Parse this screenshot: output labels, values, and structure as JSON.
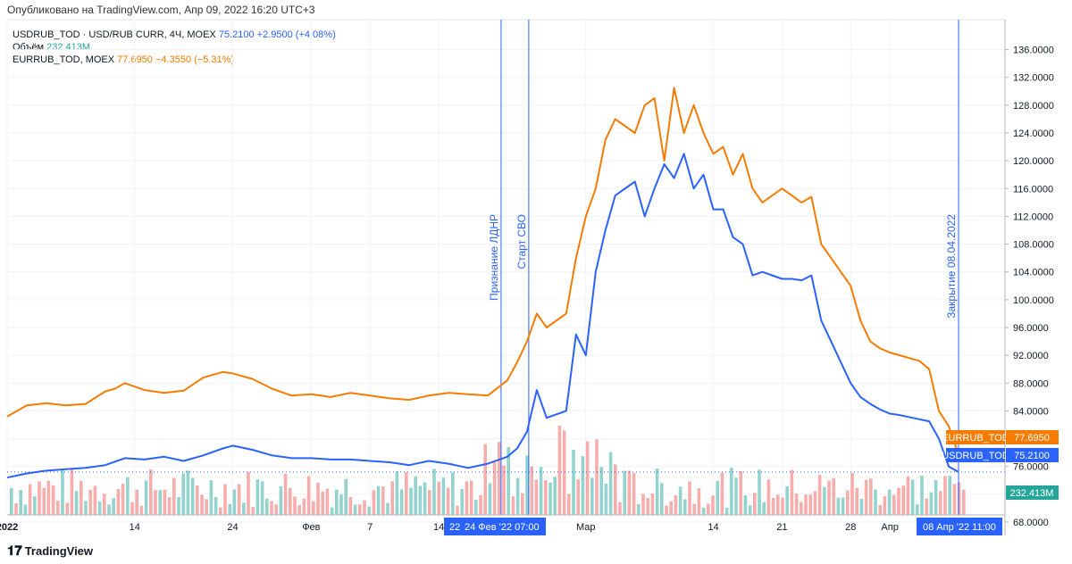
{
  "header": {
    "published": "Опубликовано на TradingView.com, Апр 09, 2022 16:20 UTC+3"
  },
  "legend": {
    "usd_label": "USDRUB_TOD · USD/RUB CURR, 4Ч, MOEX",
    "usd_value": "75.2100",
    "usd_change": "+2.9500 (+4.08%)",
    "volume_label": "Объём",
    "volume_value": "232.413M",
    "eur_label": "EURRUB_TOD, MOEX",
    "eur_value": "77.6950",
    "eur_change": "−4.3550 (−5.31%)"
  },
  "footer": {
    "brand": "TradingView"
  },
  "colors": {
    "usd": "#2962ff",
    "eur": "#f57c00",
    "vol_up": "#26a69a",
    "vol_down": "#ef5350"
  },
  "chart_data": {
    "type": "line",
    "x_unit": "date (2022)",
    "x_range": [
      "2022-01-01",
      "2022-04-08"
    ],
    "ylim": [
      68,
      138
    ],
    "y_ticks": [
      "68.0000",
      "72.0000",
      "76.0000",
      "80.0000",
      "84.0000",
      "88.0000",
      "92.0000",
      "96.0000",
      "100.0000",
      "104.0000",
      "108.0000",
      "112.0000",
      "116.0000",
      "120.0000",
      "124.0000",
      "128.0000",
      "132.0000",
      "136.0000"
    ],
    "x_ticks": [
      {
        "x": "2022-01-01",
        "label": "2022"
      },
      {
        "x": "2022-01-14",
        "label": "14"
      },
      {
        "x": "2022-01-24",
        "label": "24"
      },
      {
        "x": "2022-02-01",
        "label": "Фев"
      },
      {
        "x": "2022-02-07",
        "label": "7"
      },
      {
        "x": "2022-02-14",
        "label": "14"
      },
      {
        "x": "2022-03-01",
        "label": "Мар"
      },
      {
        "x": "2022-03-14",
        "label": "14"
      },
      {
        "x": "2022-03-21",
        "label": "21"
      },
      {
        "x": "2022-03-28",
        "label": "28"
      },
      {
        "x": "2022-04-01",
        "label": "Апр"
      }
    ],
    "x_range_labels": [
      {
        "x": "2022-02-22",
        "label": "22"
      },
      {
        "x": "2022-02-24",
        "label": "24 Фев '22   07:00"
      },
      {
        "x": "2022-04-08",
        "label": "08 Апр '22   11:00"
      }
    ],
    "annotations": [
      {
        "x": "2022-02-22",
        "label": "Признание ЛДНР"
      },
      {
        "x": "2022-02-24",
        "label": "Старт СВО"
      },
      {
        "x": "2022-04-08",
        "label": "Закрытие 08.04.2022"
      }
    ],
    "price_tags": [
      {
        "series": "EURRUB_TOD",
        "name": "EURRUB_TOD",
        "value": "77.6950"
      },
      {
        "series": "USDRUB_TOD",
        "name": "USDRUB_TOD",
        "value": "75.2100"
      },
      {
        "series": "volume",
        "name": "",
        "value": "232.413M"
      }
    ],
    "series": [
      {
        "name": "EURRUB_TOD",
        "x": [
          "2022-01-01",
          "2022-01-03",
          "2022-01-05",
          "2022-01-07",
          "2022-01-09",
          "2022-01-11",
          "2022-01-12",
          "2022-01-13",
          "2022-01-15",
          "2022-01-17",
          "2022-01-19",
          "2022-01-21",
          "2022-01-23",
          "2022-01-24",
          "2022-01-26",
          "2022-01-28",
          "2022-01-30",
          "2022-02-01",
          "2022-02-03",
          "2022-02-05",
          "2022-02-07",
          "2022-02-09",
          "2022-02-11",
          "2022-02-13",
          "2022-02-15",
          "2022-02-17",
          "2022-02-19",
          "2022-02-21",
          "2022-02-22",
          "2022-02-23",
          "2022-02-24",
          "2022-02-25",
          "2022-02-27",
          "2022-02-28",
          "2022-03-01",
          "2022-03-02",
          "2022-03-03",
          "2022-03-04",
          "2022-03-06",
          "2022-03-07",
          "2022-03-08",
          "2022-03-09",
          "2022-03-10",
          "2022-03-11",
          "2022-03-12",
          "2022-03-13",
          "2022-03-14",
          "2022-03-15",
          "2022-03-16",
          "2022-03-17",
          "2022-03-18",
          "2022-03-19",
          "2022-03-21",
          "2022-03-22",
          "2022-03-23",
          "2022-03-24",
          "2022-03-25",
          "2022-03-26",
          "2022-03-28",
          "2022-03-29",
          "2022-03-30",
          "2022-03-31",
          "2022-04-01",
          "2022-04-02",
          "2022-04-04",
          "2022-04-05",
          "2022-04-06",
          "2022-04-07",
          "2022-04-08"
        ],
        "values": [
          83.2,
          84.8,
          85.1,
          84.8,
          85.0,
          86.8,
          87.2,
          88.0,
          87.0,
          86.6,
          86.9,
          88.8,
          89.6,
          89.4,
          88.6,
          87.2,
          86.2,
          86.4,
          86.0,
          86.6,
          86.2,
          85.8,
          85.6,
          86.2,
          86.6,
          86.4,
          86.2,
          88.4,
          91.0,
          94.0,
          98.0,
          96.0,
          98.0,
          106.0,
          112.0,
          116.0,
          123.0,
          126.0,
          124.0,
          128.0,
          129.0,
          120.0,
          130.5,
          124.0,
          128.0,
          124.0,
          121.0,
          122.0,
          118.0,
          121.0,
          116.0,
          114.0,
          116.0,
          115.0,
          114.0,
          114.8,
          108.0,
          106.0,
          102.0,
          97.0,
          94.0,
          93.0,
          92.4,
          92.0,
          91.2,
          90.0,
          84.0,
          81.8,
          77.69
        ]
      },
      {
        "name": "USDRUB_TOD",
        "x": [
          "2022-01-01",
          "2022-01-03",
          "2022-01-05",
          "2022-01-07",
          "2022-01-09",
          "2022-01-11",
          "2022-01-13",
          "2022-01-15",
          "2022-01-17",
          "2022-01-19",
          "2022-01-21",
          "2022-01-23",
          "2022-01-24",
          "2022-01-26",
          "2022-01-28",
          "2022-01-30",
          "2022-02-01",
          "2022-02-03",
          "2022-02-05",
          "2022-02-07",
          "2022-02-09",
          "2022-02-11",
          "2022-02-13",
          "2022-02-15",
          "2022-02-17",
          "2022-02-19",
          "2022-02-21",
          "2022-02-22",
          "2022-02-23",
          "2022-02-24",
          "2022-02-25",
          "2022-02-27",
          "2022-02-28",
          "2022-03-01",
          "2022-03-02",
          "2022-03-03",
          "2022-03-04",
          "2022-03-06",
          "2022-03-07",
          "2022-03-08",
          "2022-03-09",
          "2022-03-10",
          "2022-03-11",
          "2022-03-12",
          "2022-03-13",
          "2022-03-14",
          "2022-03-15",
          "2022-03-16",
          "2022-03-17",
          "2022-03-18",
          "2022-03-19",
          "2022-03-21",
          "2022-03-22",
          "2022-03-23",
          "2022-03-24",
          "2022-03-25",
          "2022-03-26",
          "2022-03-28",
          "2022-03-29",
          "2022-03-30",
          "2022-03-31",
          "2022-04-01",
          "2022-04-02",
          "2022-04-04",
          "2022-04-05",
          "2022-04-06",
          "2022-04-07",
          "2022-04-08"
        ],
        "values": [
          74.4,
          75.0,
          75.4,
          75.6,
          75.8,
          76.2,
          77.2,
          77.0,
          77.4,
          76.8,
          77.6,
          78.6,
          79.0,
          78.4,
          77.6,
          77.2,
          77.2,
          77.0,
          77.0,
          76.8,
          76.6,
          76.2,
          76.8,
          76.4,
          75.8,
          76.4,
          77.4,
          78.6,
          81.0,
          87.0,
          83.0,
          84.0,
          95.0,
          92.0,
          104.0,
          110.0,
          115.0,
          117.0,
          112.0,
          116.0,
          119.5,
          117.5,
          121.0,
          116.0,
          118.0,
          113.0,
          113.0,
          109.0,
          108.0,
          103.5,
          104.0,
          103.0,
          103.0,
          102.8,
          103.5,
          97.0,
          94.0,
          88.0,
          86.0,
          85.0,
          84.2,
          83.6,
          83.4,
          82.8,
          82.5,
          80.0,
          76.0,
          75.21
        ]
      }
    ],
    "volume_color_rule": "teal = up bar, red = down bar"
  }
}
